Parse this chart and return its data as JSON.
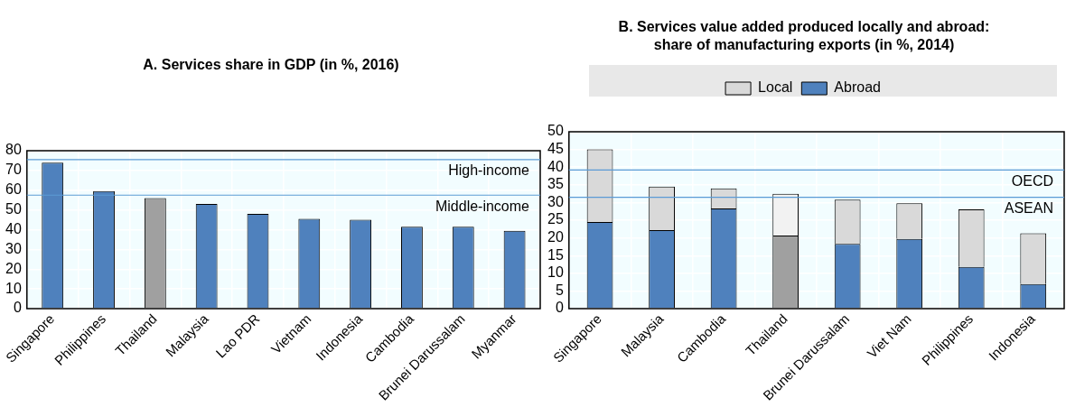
{
  "chart_data": [
    {
      "type": "bar",
      "title": "A. Services share in GDP (in %, 2016)",
      "categories": [
        "Singapore",
        "Philippines",
        "Thailand",
        "Malaysia",
        "Lao PDR",
        "Vietnam",
        "Indonesia",
        "Cambodia",
        "Brunei Darussalam",
        "Myanmar"
      ],
      "values": [
        74,
        59.5,
        56,
        53,
        48,
        45.5,
        45,
        41.5,
        41.5,
        39.5
      ],
      "colors": [
        "#4f81bd",
        "#4f81bd",
        "#a0a0a0",
        "#4f81bd",
        "#4f81bd",
        "#4f81bd",
        "#4f81bd",
        "#4f81bd",
        "#4f81bd",
        "#4f81bd"
      ],
      "ylim": [
        0,
        80
      ],
      "yticks": [
        0,
        10,
        20,
        30,
        40,
        50,
        60,
        70,
        80
      ],
      "grid": true,
      "ref_lines": [
        {
          "axis": "y",
          "value": 75.5,
          "label": "High-income",
          "color": "#5b9bd5"
        },
        {
          "axis": "y",
          "value": 57.5,
          "label": "Middle-income",
          "color": "#5b9bd5"
        }
      ]
    },
    {
      "type": "bar",
      "title": "B. Services value added produced locally and abroad: share of manufacturing exports (in %, 2014)",
      "categories": [
        "Singapore",
        "Malaysia",
        "Cambodia",
        "Thailand",
        "Brunei Darussalam",
        "Viet Nam",
        "Philippines",
        "Indonesia"
      ],
      "stacked": true,
      "legend": "top",
      "grid": true,
      "ylim": [
        0,
        50
      ],
      "yticks": [
        0,
        5,
        10,
        15,
        20,
        25,
        30,
        35,
        40,
        45,
        50
      ],
      "series": [
        {
          "name": "Abroad",
          "color": "#4f81bd",
          "colors": [
            "#4f81bd",
            "#4f81bd",
            "#4f81bd",
            "#a0a0a0",
            "#4f81bd",
            "#4f81bd",
            "#4f81bd",
            "#4f81bd"
          ],
          "values": [
            24.5,
            22.2,
            28.3,
            20.7,
            18.3,
            19.7,
            11.8,
            7
          ]
        },
        {
          "name": "Local",
          "color": "#d9d9d9",
          "colors": [
            "#d9d9d9",
            "#d9d9d9",
            "#d9d9d9",
            "#f2f2f2",
            "#d9d9d9",
            "#d9d9d9",
            "#d9d9d9",
            "#d9d9d9"
          ],
          "values": [
            20.5,
            12.3,
            5.7,
            11.8,
            12.5,
            10.1,
            16.3,
            14.3
          ]
        }
      ],
      "ref_lines": [
        {
          "axis": "y",
          "value": 39.2,
          "label": "OECD",
          "color": "#5b9bd5"
        },
        {
          "axis": "y",
          "value": 31.5,
          "label": "ASEAN",
          "color": "#5b9bd5"
        }
      ]
    }
  ]
}
